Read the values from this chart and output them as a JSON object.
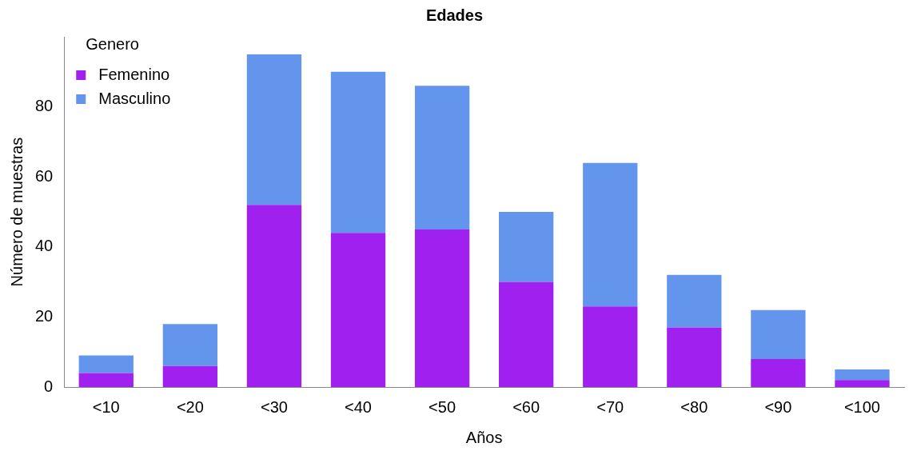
{
  "chart_data": {
    "type": "bar",
    "title": "Edades",
    "xlabel": "Años",
    "ylabel": "Número de muestras",
    "legend_title": "Genero",
    "categories": [
      "<10",
      "<20",
      "<30",
      "<40",
      "<50",
      "<60",
      "<70",
      "<80",
      "<90",
      "<100"
    ],
    "series": [
      {
        "name": "Femenino",
        "color": "#a020f0",
        "values": [
          4,
          6,
          52,
          44,
          45,
          30,
          23,
          17,
          8,
          2
        ]
      },
      {
        "name": "Masculino",
        "color": "#6495ed",
        "values": [
          5,
          12,
          43,
          46,
          41,
          20,
          41,
          15,
          14,
          3
        ]
      }
    ],
    "stacked": true,
    "ylim": [
      0,
      100
    ],
    "yticks": [
      0,
      20,
      40,
      60,
      80
    ],
    "grid": false,
    "legend": "top left"
  }
}
